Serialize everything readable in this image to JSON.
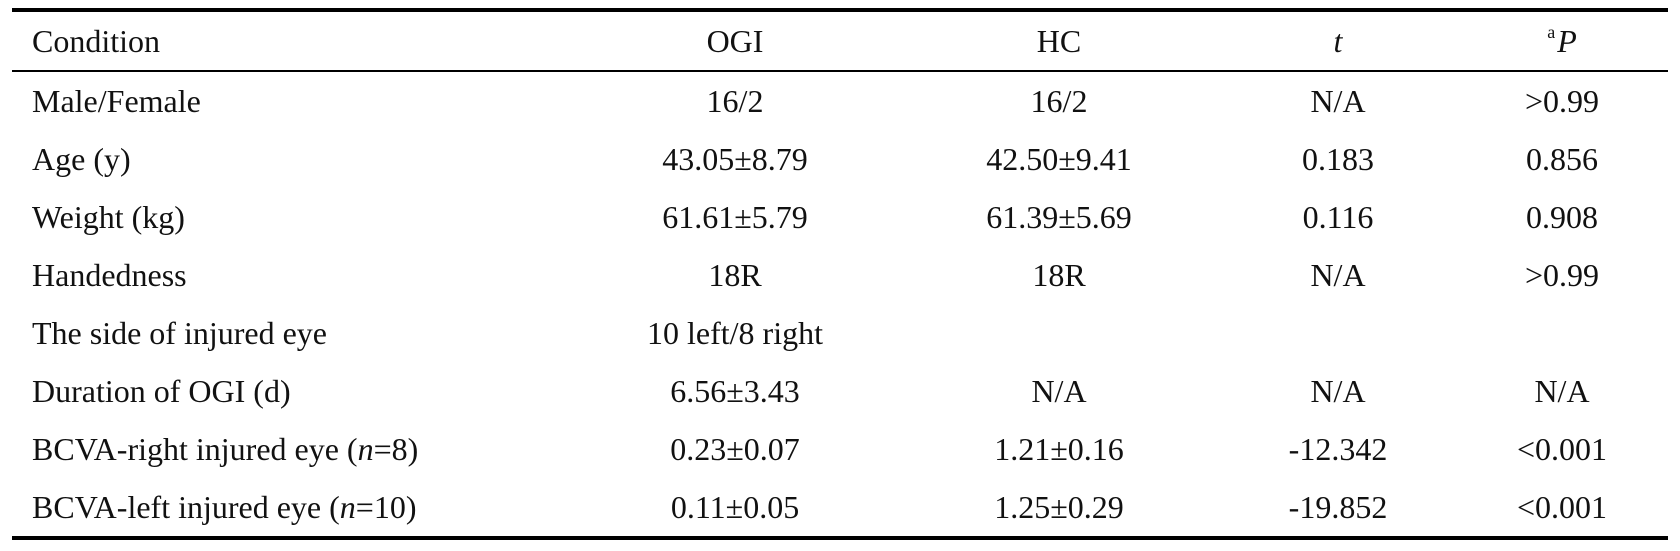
{
  "table": {
    "headers": {
      "condition": "Condition",
      "ogi": "OGI",
      "hc": "HC",
      "t": "t",
      "p_sup": "a",
      "p": "P"
    },
    "rows": [
      {
        "label": "Male/Female",
        "ogi": "16/2",
        "hc": "16/2",
        "t": "N/A",
        "p": ">0.99"
      },
      {
        "label": "Age (y)",
        "ogi": "43.05±8.79",
        "hc": "42.50±9.41",
        "t": "0.183",
        "p": "0.856"
      },
      {
        "label": "Weight (kg)",
        "ogi": "61.61±5.79",
        "hc": "61.39±5.69",
        "t": "0.116",
        "p": "0.908"
      },
      {
        "label": "Handedness",
        "ogi": "18R",
        "hc": "18R",
        "t": "N/A",
        "p": ">0.99"
      },
      {
        "label": "The side of injured eye",
        "ogi": "10 left/8 right",
        "hc": "",
        "t": "",
        "p": ""
      },
      {
        "label": "Duration of OGI (d)",
        "ogi": "6.56±3.43",
        "hc": "N/A",
        "t": "N/A",
        "p": "N/A"
      },
      {
        "label_pre": "BCVA-right injured eye (",
        "label_n": "n",
        "label_post": "=8)",
        "ogi": "0.23±0.07",
        "hc": "1.21±0.16",
        "t": "-12.342",
        "p": "<0.001"
      },
      {
        "label_pre": "BCVA-left injured eye (",
        "label_n": "n",
        "label_post": "=10)",
        "ogi": "0.11±0.05",
        "hc": "1.25±0.29",
        "t": "-19.852",
        "p": "<0.001"
      }
    ]
  }
}
